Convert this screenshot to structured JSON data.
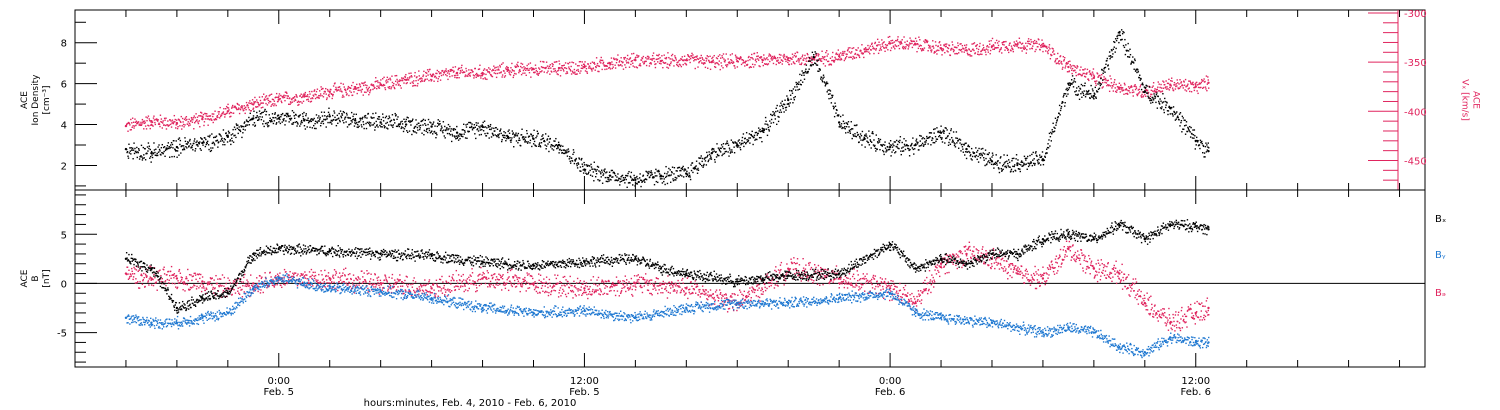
{
  "chart_data": [
    {
      "type": "scatter",
      "panel": "top",
      "ylabel_left": [
        "ACE",
        "Ion Density",
        "[cm⁻³]"
      ],
      "ylabel_right": [
        "ACE",
        "Vₓ [km/s]"
      ],
      "left_axis": {
        "ylim": [
          0.8,
          9.6
        ],
        "ticks": [
          2,
          4,
          6,
          8
        ]
      },
      "right_axis": {
        "ylim": [
          -480,
          -297
        ],
        "ticks": [
          -450,
          -400,
          -350,
          -300
        ]
      },
      "series": [
        {
          "name": "Ion Density",
          "color": "#000000",
          "axis": "left",
          "points": [
            [
              -6,
              2.8
            ],
            [
              -5,
              2.6
            ],
            [
              -4,
              2.9
            ],
            [
              -3,
              3.1
            ],
            [
              -2,
              3.4
            ],
            [
              -1,
              4.3
            ],
            [
              0,
              4.3
            ],
            [
              1,
              4.2
            ],
            [
              2,
              4.4
            ],
            [
              3,
              4.2
            ],
            [
              4,
              4.1
            ],
            [
              5,
              4.0
            ],
            [
              6,
              3.9
            ],
            [
              7,
              3.6
            ],
            [
              8,
              3.9
            ],
            [
              9,
              3.4
            ],
            [
              10,
              3.3
            ],
            [
              11,
              3.0
            ],
            [
              12,
              1.8
            ],
            [
              13,
              1.5
            ],
            [
              14,
              1.3
            ],
            [
              15,
              1.5
            ],
            [
              16,
              1.6
            ],
            [
              17,
              2.6
            ],
            [
              18,
              3.0
            ],
            [
              19,
              3.7
            ],
            [
              20,
              5.2
            ],
            [
              21,
              7.3
            ],
            [
              22,
              4.1
            ],
            [
              23,
              3.3
            ],
            [
              24,
              2.9
            ],
            [
              25,
              3.0
            ],
            [
              26,
              3.6
            ],
            [
              27,
              2.8
            ],
            [
              28,
              2.2
            ],
            [
              29,
              2.1
            ],
            [
              30,
              2.3
            ],
            [
              31,
              6.0
            ],
            [
              32,
              5.4
            ],
            [
              33,
              8.5
            ],
            [
              34,
              5.6
            ],
            [
              35,
              4.8
            ],
            [
              36,
              3.2
            ],
            [
              36.5,
              2.7
            ]
          ]
        },
        {
          "name": "Vₓ",
          "color": "#e0245e",
          "axis": "right",
          "points": [
            [
              -6,
              -415
            ],
            [
              -5,
              -410
            ],
            [
              -4,
              -412
            ],
            [
              -3,
              -408
            ],
            [
              -2,
              -400
            ],
            [
              -1,
              -393
            ],
            [
              0,
              -388
            ],
            [
              1,
              -385
            ],
            [
              2,
              -380
            ],
            [
              3,
              -377
            ],
            [
              4,
              -373
            ],
            [
              5,
              -368
            ],
            [
              6,
              -364
            ],
            [
              7,
              -361
            ],
            [
              8,
              -361
            ],
            [
              9,
              -358
            ],
            [
              10,
              -357
            ],
            [
              11,
              -356
            ],
            [
              12,
              -355
            ],
            [
              13,
              -351
            ],
            [
              14,
              -348
            ],
            [
              15,
              -349
            ],
            [
              16,
              -348
            ],
            [
              17,
              -350
            ],
            [
              18,
              -349
            ],
            [
              19,
              -348
            ],
            [
              20,
              -346
            ],
            [
              21,
              -347
            ],
            [
              22,
              -344
            ],
            [
              23,
              -337
            ],
            [
              24,
              -331
            ],
            [
              25,
              -332
            ],
            [
              26,
              -336
            ],
            [
              27,
              -338
            ],
            [
              28,
              -334
            ],
            [
              29,
              -332
            ],
            [
              30,
              -334
            ],
            [
              31,
              -355
            ],
            [
              32,
              -366
            ],
            [
              33,
              -376
            ],
            [
              34,
              -380
            ],
            [
              35,
              -373
            ],
            [
              36,
              -375
            ],
            [
              36.5,
              -371
            ]
          ]
        }
      ]
    },
    {
      "type": "scatter",
      "panel": "bottom",
      "ylabel": [
        "ACE",
        "B",
        "[nT]"
      ],
      "ylim": [
        -8.5,
        9.5
      ],
      "yticks": [
        -5,
        0,
        5
      ],
      "legend_position": "right",
      "series": [
        {
          "name": "Bₓ",
          "color": "#000000",
          "points": [
            [
              -6,
              2.5
            ],
            [
              -5,
              1.5
            ],
            [
              -4,
              -2.5
            ],
            [
              -3,
              -1.5
            ],
            [
              -2,
              -1.0
            ],
            [
              -1,
              3.0
            ],
            [
              0,
              3.5
            ],
            [
              2,
              3.3
            ],
            [
              4,
              3.0
            ],
            [
              6,
              2.8
            ],
            [
              8,
              2.2
            ],
            [
              10,
              1.8
            ],
            [
              12,
              2.2
            ],
            [
              14,
              2.5
            ],
            [
              15,
              1.5
            ],
            [
              16,
              1.0
            ],
            [
              18,
              0.2
            ],
            [
              19,
              0.5
            ],
            [
              20,
              0.8
            ],
            [
              22,
              1.0
            ],
            [
              24,
              4.0
            ],
            [
              25,
              1.5
            ],
            [
              26,
              2.5
            ],
            [
              27,
              2.0
            ],
            [
              28,
              3.0
            ],
            [
              29,
              3.0
            ],
            [
              30,
              4.5
            ],
            [
              31,
              5.0
            ],
            [
              32,
              4.5
            ],
            [
              33,
              6.0
            ],
            [
              34,
              4.5
            ],
            [
              35,
              6.0
            ],
            [
              36,
              5.8
            ],
            [
              36.5,
              5.5
            ]
          ]
        },
        {
          "name": "Bᵧ",
          "color": "#1f78d1",
          "points": [
            [
              -6,
              -3.5
            ],
            [
              -5,
              -4.0
            ],
            [
              -4,
              -4.0
            ],
            [
              -3,
              -3.5
            ],
            [
              -2,
              -3.0
            ],
            [
              -1,
              -0.5
            ],
            [
              0,
              0.5
            ],
            [
              1,
              0.0
            ],
            [
              2,
              -0.5
            ],
            [
              4,
              -0.8
            ],
            [
              6,
              -1.5
            ],
            [
              8,
              -2.5
            ],
            [
              10,
              -3.0
            ],
            [
              12,
              -2.8
            ],
            [
              14,
              -3.5
            ],
            [
              16,
              -2.5
            ],
            [
              18,
              -2.0
            ],
            [
              20,
              -2.0
            ],
            [
              22,
              -1.5
            ],
            [
              24,
              -1.0
            ],
            [
              25,
              -3.0
            ],
            [
              26,
              -3.5
            ],
            [
              28,
              -4.0
            ],
            [
              30,
              -5.0
            ],
            [
              31,
              -4.5
            ],
            [
              32,
              -5.0
            ],
            [
              33,
              -6.5
            ],
            [
              34,
              -7.0
            ],
            [
              35,
              -5.5
            ],
            [
              36,
              -6.0
            ],
            [
              36.5,
              -6.0
            ]
          ]
        },
        {
          "name": "Bₔ",
          "color": "#e0245e",
          "points": [
            [
              -6,
              1.0
            ],
            [
              -5,
              0.5
            ],
            [
              -4,
              0.5
            ],
            [
              -3,
              0.2
            ],
            [
              -2,
              -0.5
            ],
            [
              -1,
              0.0
            ],
            [
              0,
              0.5
            ],
            [
              2,
              0.5
            ],
            [
              4,
              0.0
            ],
            [
              6,
              -0.5
            ],
            [
              8,
              0.5
            ],
            [
              10,
              0.0
            ],
            [
              12,
              -0.5
            ],
            [
              14,
              0.0
            ],
            [
              16,
              -0.5
            ],
            [
              18,
              -2.0
            ],
            [
              20,
              1.5
            ],
            [
              22,
              0.5
            ],
            [
              24,
              -0.5
            ],
            [
              25,
              -2.0
            ],
            [
              26,
              2.0
            ],
            [
              27,
              3.0
            ],
            [
              28,
              2.5
            ],
            [
              29,
              1.0
            ],
            [
              30,
              0.5
            ],
            [
              31,
              3.5
            ],
            [
              32,
              1.5
            ],
            [
              33,
              1.0
            ],
            [
              34,
              -2.0
            ],
            [
              35,
              -4.0
            ],
            [
              36,
              -3.0
            ],
            [
              36.5,
              -2.5
            ]
          ]
        }
      ]
    }
  ],
  "time_axis": {
    "range_hours": [
      -8,
      45
    ],
    "major_labels": [
      {
        "hour": 0,
        "time": "0:00",
        "date": "Feb. 5"
      },
      {
        "hour": 12,
        "time": "12:00",
        "date": "Feb. 5"
      },
      {
        "hour": 24,
        "time": "0:00",
        "date": "Feb. 6"
      },
      {
        "hour": 36,
        "time": "12:00",
        "date": "Feb. 6"
      }
    ],
    "xlabel": "hours:minutes, Feb.  4, 2010 - Feb.  6, 2010"
  },
  "colors": {
    "density": "#000000",
    "vx": "#e0245e",
    "bx": "#000000",
    "by": "#1f78d1",
    "bz": "#e0245e"
  }
}
